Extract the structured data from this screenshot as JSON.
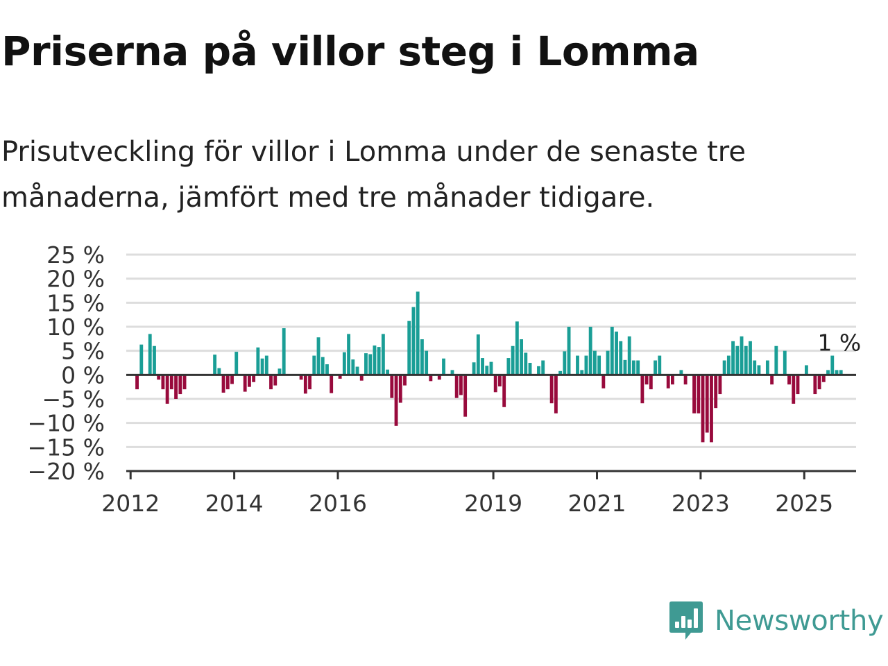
{
  "title": "Priserna på villor steg i Lomma",
  "subtitle": "Prisutveckling för villor i Lomma under de senaste tre månaderna, jämfört med tre månader tidigare.",
  "brand": {
    "name": "Newsworthy",
    "icon": "newsworthy-bar-chart-icon"
  },
  "colors": {
    "positive": "#1a9e96",
    "negative": "#980a3c",
    "grid": "#dddddd",
    "axis": "#333333",
    "brand": "#3f9a93"
  },
  "chart_data": {
    "type": "bar",
    "title": "Priserna på villor steg i Lomma",
    "xlabel": "",
    "ylabel": "",
    "x_start": "2011-12",
    "x_end": "2025-12",
    "ylim": [
      -20,
      25
    ],
    "yticks": [
      {
        "value": 25,
        "label": "25 %"
      },
      {
        "value": 20,
        "label": "20 %"
      },
      {
        "value": 15,
        "label": "15 %"
      },
      {
        "value": 10,
        "label": "10 %"
      },
      {
        "value": 5,
        "label": "5 %"
      },
      {
        "value": 0,
        "label": "0 %"
      },
      {
        "value": -5,
        "label": "−5 %"
      },
      {
        "value": -10,
        "label": "−10 %"
      },
      {
        "value": -15,
        "label": "−15 %"
      },
      {
        "value": -20,
        "label": "−20 %"
      }
    ],
    "xticks": [
      {
        "date": "2012-01",
        "label": "2012"
      },
      {
        "date": "2014-01",
        "label": "2014"
      },
      {
        "date": "2016-01",
        "label": "2016"
      },
      {
        "date": "2019-01",
        "label": "2019"
      },
      {
        "date": "2021-01",
        "label": "2021"
      },
      {
        "date": "2023-01",
        "label": "2023"
      },
      {
        "date": "2025-01",
        "label": "2025"
      }
    ],
    "grid": true,
    "last_value_label": "1 %",
    "series": [
      {
        "points": [
          {
            "date": "2012-02",
            "value": -3
          },
          {
            "date": "2012-03",
            "value": 6.3
          },
          {
            "date": "2012-05",
            "value": 8.5
          },
          {
            "date": "2012-06",
            "value": 6
          },
          {
            "date": "2012-07",
            "value": -1
          },
          {
            "date": "2012-08",
            "value": -3
          },
          {
            "date": "2012-09",
            "value": -6
          },
          {
            "date": "2012-10",
            "value": -3
          },
          {
            "date": "2012-11",
            "value": -5
          },
          {
            "date": "2012-12",
            "value": -4
          },
          {
            "date": "2013-01",
            "value": -3
          },
          {
            "date": "2013-08",
            "value": 4.2
          },
          {
            "date": "2013-09",
            "value": 1.4
          },
          {
            "date": "2013-10",
            "value": -3.7
          },
          {
            "date": "2013-11",
            "value": -3
          },
          {
            "date": "2013-12",
            "value": -1.9
          },
          {
            "date": "2014-01",
            "value": 4.8
          },
          {
            "date": "2014-03",
            "value": -3.5
          },
          {
            "date": "2014-04",
            "value": -2.5
          },
          {
            "date": "2014-05",
            "value": -1.5
          },
          {
            "date": "2014-06",
            "value": 5.7
          },
          {
            "date": "2014-07",
            "value": 3.4
          },
          {
            "date": "2014-08",
            "value": 4
          },
          {
            "date": "2014-09",
            "value": -3
          },
          {
            "date": "2014-10",
            "value": -2.2
          },
          {
            "date": "2014-11",
            "value": 1.3
          },
          {
            "date": "2014-12",
            "value": 9.7
          },
          {
            "date": "2015-04",
            "value": -1
          },
          {
            "date": "2015-05",
            "value": -3.9
          },
          {
            "date": "2015-06",
            "value": -3
          },
          {
            "date": "2015-07",
            "value": 4
          },
          {
            "date": "2015-08",
            "value": 7.8
          },
          {
            "date": "2015-09",
            "value": 3.7
          },
          {
            "date": "2015-10",
            "value": 2.2
          },
          {
            "date": "2015-11",
            "value": -3.8
          },
          {
            "date": "2016-01",
            "value": -0.8
          },
          {
            "date": "2016-02",
            "value": 4.7
          },
          {
            "date": "2016-03",
            "value": 8.5
          },
          {
            "date": "2016-04",
            "value": 3.2
          },
          {
            "date": "2016-05",
            "value": 1.7
          },
          {
            "date": "2016-06",
            "value": -1.2
          },
          {
            "date": "2016-07",
            "value": 4.5
          },
          {
            "date": "2016-08",
            "value": 4.3
          },
          {
            "date": "2016-09",
            "value": 6.1
          },
          {
            "date": "2016-10",
            "value": 5.8
          },
          {
            "date": "2016-11",
            "value": 8.5
          },
          {
            "date": "2016-12",
            "value": 1.1
          },
          {
            "date": "2017-01",
            "value": -4.8
          },
          {
            "date": "2017-02",
            "value": -10.6
          },
          {
            "date": "2017-03",
            "value": -5.8
          },
          {
            "date": "2017-04",
            "value": -2.2
          },
          {
            "date": "2017-05",
            "value": 11.2
          },
          {
            "date": "2017-06",
            "value": 14.1
          },
          {
            "date": "2017-07",
            "value": 17.3
          },
          {
            "date": "2017-08",
            "value": 7.4
          },
          {
            "date": "2017-09",
            "value": 5
          },
          {
            "date": "2017-10",
            "value": -1.3
          },
          {
            "date": "2017-12",
            "value": -1
          },
          {
            "date": "2018-01",
            "value": 3.4
          },
          {
            "date": "2018-03",
            "value": 1
          },
          {
            "date": "2018-04",
            "value": -4.8
          },
          {
            "date": "2018-05",
            "value": -4.2
          },
          {
            "date": "2018-06",
            "value": -8.7
          },
          {
            "date": "2018-08",
            "value": 2.6
          },
          {
            "date": "2018-09",
            "value": 8.4
          },
          {
            "date": "2018-10",
            "value": 3.5
          },
          {
            "date": "2018-11",
            "value": 1.9
          },
          {
            "date": "2018-12",
            "value": 2.7
          },
          {
            "date": "2019-01",
            "value": -3.6
          },
          {
            "date": "2019-02",
            "value": -2.4
          },
          {
            "date": "2019-03",
            "value": -6.7
          },
          {
            "date": "2019-04",
            "value": 3.5
          },
          {
            "date": "2019-05",
            "value": 6
          },
          {
            "date": "2019-06",
            "value": 11.1
          },
          {
            "date": "2019-07",
            "value": 7.4
          },
          {
            "date": "2019-08",
            "value": 4.6
          },
          {
            "date": "2019-09",
            "value": 2.5
          },
          {
            "date": "2019-11",
            "value": 1.8
          },
          {
            "date": "2019-12",
            "value": 3
          },
          {
            "date": "2020-02",
            "value": -5.9
          },
          {
            "date": "2020-03",
            "value": -8
          },
          {
            "date": "2020-04",
            "value": 0.8
          },
          {
            "date": "2020-05",
            "value": 4.9
          },
          {
            "date": "2020-06",
            "value": 10
          },
          {
            "date": "2020-08",
            "value": 4
          },
          {
            "date": "2020-09",
            "value": 1
          },
          {
            "date": "2020-10",
            "value": 4
          },
          {
            "date": "2020-11",
            "value": 10
          },
          {
            "date": "2020-12",
            "value": 5
          },
          {
            "date": "2021-01",
            "value": 4
          },
          {
            "date": "2021-02",
            "value": -2.8
          },
          {
            "date": "2021-03",
            "value": 5
          },
          {
            "date": "2021-04",
            "value": 10
          },
          {
            "date": "2021-05",
            "value": 9
          },
          {
            "date": "2021-06",
            "value": 7
          },
          {
            "date": "2021-07",
            "value": 3.1
          },
          {
            "date": "2021-08",
            "value": 8
          },
          {
            "date": "2021-09",
            "value": 3
          },
          {
            "date": "2021-10",
            "value": 3
          },
          {
            "date": "2021-11",
            "value": -5.9
          },
          {
            "date": "2021-12",
            "value": -2
          },
          {
            "date": "2022-01",
            "value": -3
          },
          {
            "date": "2022-02",
            "value": 3
          },
          {
            "date": "2022-03",
            "value": 4
          },
          {
            "date": "2022-05",
            "value": -2.8
          },
          {
            "date": "2022-06",
            "value": -2
          },
          {
            "date": "2022-08",
            "value": 1
          },
          {
            "date": "2022-09",
            "value": -2
          },
          {
            "date": "2022-11",
            "value": -8
          },
          {
            "date": "2022-12",
            "value": -8
          },
          {
            "date": "2023-01",
            "value": -14
          },
          {
            "date": "2023-02",
            "value": -12
          },
          {
            "date": "2023-03",
            "value": -14
          },
          {
            "date": "2023-04",
            "value": -6.9
          },
          {
            "date": "2023-05",
            "value": -4
          },
          {
            "date": "2023-06",
            "value": 3
          },
          {
            "date": "2023-07",
            "value": 4
          },
          {
            "date": "2023-08",
            "value": 7
          },
          {
            "date": "2023-09",
            "value": 6
          },
          {
            "date": "2023-10",
            "value": 8
          },
          {
            "date": "2023-11",
            "value": 6
          },
          {
            "date": "2023-12",
            "value": 7
          },
          {
            "date": "2024-01",
            "value": 3
          },
          {
            "date": "2024-02",
            "value": 2
          },
          {
            "date": "2024-03",
            "value": 0
          },
          {
            "date": "2024-04",
            "value": 3
          },
          {
            "date": "2024-05",
            "value": -2
          },
          {
            "date": "2024-06",
            "value": 6
          },
          {
            "date": "2024-07",
            "value": 0
          },
          {
            "date": "2024-08",
            "value": 5
          },
          {
            "date": "2024-09",
            "value": -2
          },
          {
            "date": "2024-10",
            "value": -6
          },
          {
            "date": "2024-11",
            "value": -4
          },
          {
            "date": "2025-01",
            "value": 2
          },
          {
            "date": "2025-03",
            "value": -4
          },
          {
            "date": "2025-04",
            "value": -3
          },
          {
            "date": "2025-05",
            "value": -1.5
          },
          {
            "date": "2025-06",
            "value": 1
          },
          {
            "date": "2025-07",
            "value": 4
          },
          {
            "date": "2025-08",
            "value": 1
          },
          {
            "date": "2025-09",
            "value": 1
          }
        ]
      }
    ]
  }
}
